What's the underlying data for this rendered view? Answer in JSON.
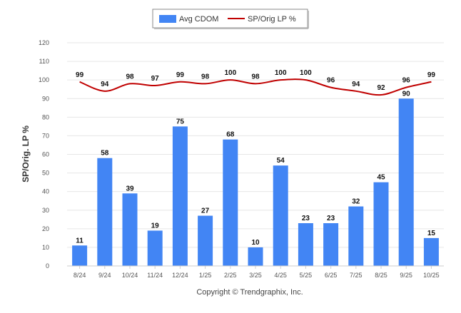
{
  "chart_data": {
    "type": "bar",
    "categories": [
      "8/24",
      "9/24",
      "10/24",
      "11/24",
      "12/24",
      "1/25",
      "2/25",
      "3/25",
      "4/25",
      "5/25",
      "6/25",
      "7/25",
      "8/25",
      "9/25",
      "10/25"
    ],
    "series": [
      {
        "name": "Avg CDOM",
        "type": "bar",
        "color": "#4285f4",
        "values": [
          11,
          58,
          39,
          19,
          75,
          27,
          68,
          10,
          54,
          23,
          23,
          32,
          45,
          90,
          15
        ]
      },
      {
        "name": "SP/Orig LP %",
        "type": "line",
        "color": "#c00000",
        "values": [
          99,
          94,
          98,
          97,
          99,
          98,
          100,
          98,
          100,
          100,
          96,
          94,
          92,
          96,
          99
        ]
      }
    ],
    "ylabel": "SP/Orig. LP %",
    "ylim": [
      0,
      120
    ],
    "yticks": [
      0,
      10,
      20,
      30,
      40,
      50,
      60,
      70,
      80,
      90,
      100,
      110,
      120
    ],
    "grid": true,
    "legend": "top-center"
  },
  "copyright": "Copyright © Trendgraphix, Inc."
}
